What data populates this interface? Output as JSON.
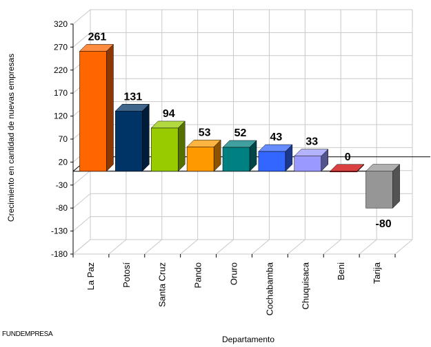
{
  "source": "FUNDEMPRESA",
  "chart_data": {
    "type": "bar",
    "style": "3d",
    "xlabel": "Departamento",
    "ylabel": "Crecimiento en cantidad de nuevas empresas",
    "ylim": [
      -180,
      320
    ],
    "yticks": [
      "320",
      "270",
      "220",
      "170",
      "120",
      "70",
      "20",
      "-30",
      "-80",
      "-130",
      "-180"
    ],
    "ytick_values": [
      320,
      270,
      220,
      170,
      120,
      70,
      20,
      -30,
      -80,
      -130,
      -180
    ],
    "grid": true,
    "categories": [
      "La Paz",
      "Potosí",
      "Santa Cruz",
      "Pando",
      "Oruro",
      "Cochabamba",
      "Chuquisaca",
      "Beni",
      "Tarija"
    ],
    "values": [
      261,
      131,
      94,
      53,
      52,
      43,
      33,
      0,
      -80
    ],
    "data_labels": [
      "261",
      "131",
      "94",
      "53",
      "52",
      "43",
      "33",
      "0",
      "-80"
    ],
    "colors": [
      "#ff6600",
      "#003366",
      "#99cc00",
      "#ff9900",
      "#008080",
      "#3366ff",
      "#9999ff",
      "#cc0000",
      "#969696"
    ]
  }
}
